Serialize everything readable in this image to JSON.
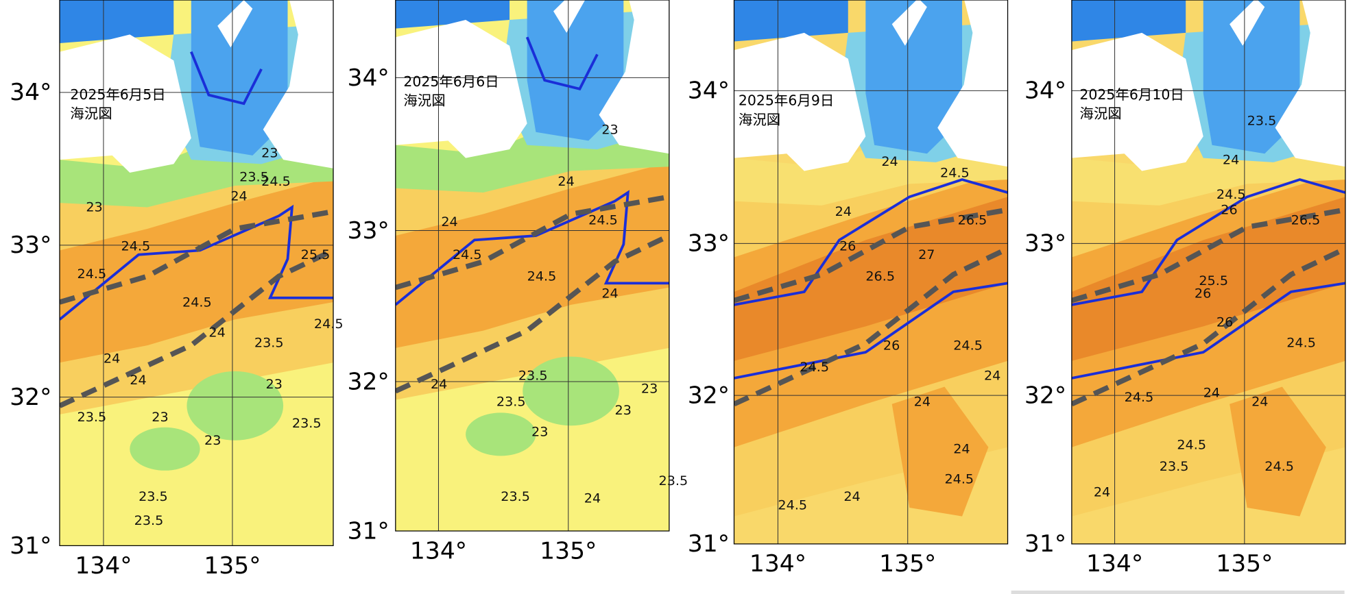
{
  "panels": [
    {
      "date": "2025年6月5日",
      "title": "海況図",
      "lat_labels": [
        "34°",
        "33°",
        "32°",
        "31°"
      ],
      "lon_labels": [
        "134°",
        "135°"
      ],
      "contour_labels": [
        "23",
        "24.5",
        "24.5",
        "23",
        "23.5",
        "24.5",
        "24",
        "25.5",
        "24.5",
        "24",
        "23.5",
        "24.5",
        "24",
        "24",
        "23",
        "23.5",
        "23",
        "23.5",
        "23",
        "23.5",
        "23.5"
      ]
    },
    {
      "date": "2025年6月6日",
      "title": "海況図",
      "lat_labels": [
        "34°",
        "33°",
        "32°",
        "31°"
      ],
      "lon_labels": [
        "134°",
        "135°"
      ],
      "contour_labels": [
        "23",
        "24",
        "24",
        "24.5",
        "24.5",
        "24.5",
        "24",
        "24",
        "23.5",
        "23.5",
        "23",
        "23",
        "23",
        "23.5",
        "24",
        "23.5"
      ]
    },
    {
      "date": "2025年6月9日",
      "title": "海況図",
      "lat_labels": [
        "34°",
        "33°",
        "32°",
        "31°"
      ],
      "lon_labels": [
        "134°",
        "135°"
      ],
      "contour_labels": [
        "24",
        "24.5",
        "24",
        "26",
        "26.5",
        "27",
        "26.5",
        "26",
        "24.5",
        "24",
        "24.5",
        "24",
        "24",
        "24.5",
        "24",
        "24.5"
      ]
    },
    {
      "date": "2025年6月10日",
      "title": "海況図",
      "lat_labels": [
        "34°",
        "33°",
        "32°",
        "31°"
      ],
      "lon_labels": [
        "134°",
        "135°"
      ],
      "contour_labels": [
        "23.5",
        "24",
        "24.5",
        "26",
        "26.5",
        "25.5",
        "26",
        "26",
        "24.5",
        "24",
        "24",
        "24.5",
        "24.5",
        "23.5",
        "24",
        "24.5"
      ]
    }
  ]
}
